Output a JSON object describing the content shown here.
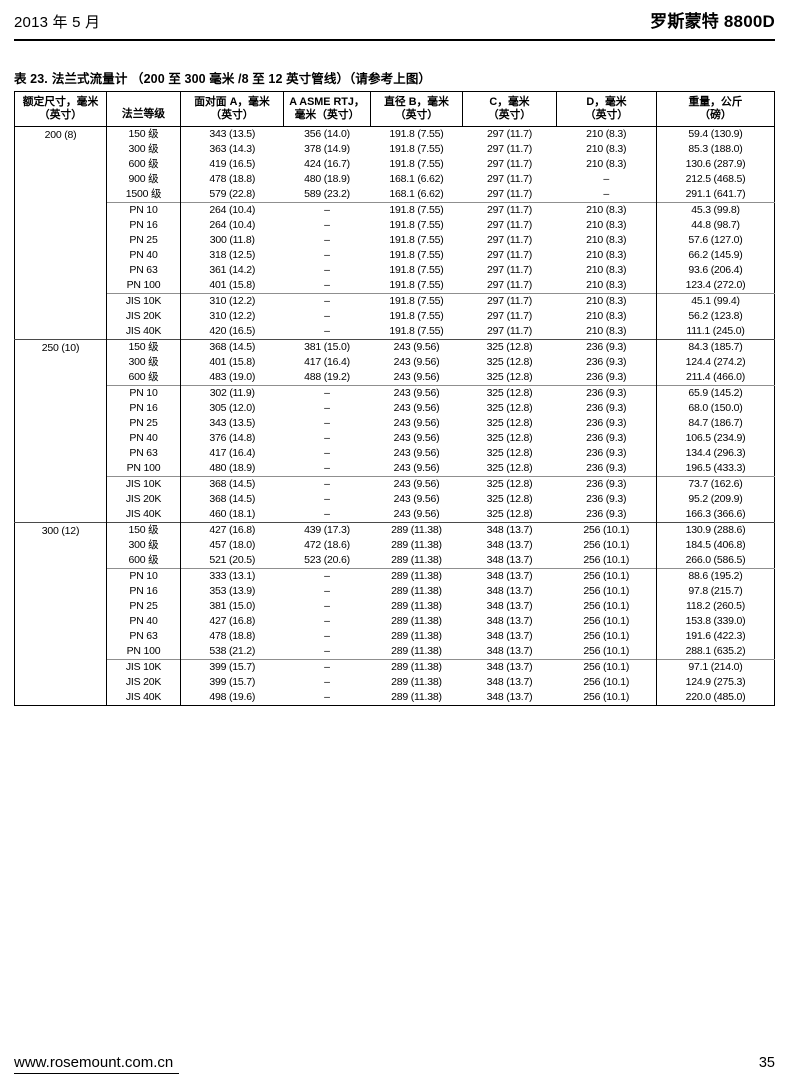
{
  "header": {
    "date": "2013 年 5 月",
    "product": "罗斯蒙特 8800D"
  },
  "table": {
    "title_label": "表 23.",
    "title": "法兰式流量计 （200 至 300 毫米 /8 至 12 英寸管线）（请参考上图）",
    "columns": [
      {
        "id": "size",
        "l1": "额定尺寸，毫米",
        "l2": "（英寸）"
      },
      {
        "id": "flange-class",
        "l1": "法兰等级",
        "l2": ""
      },
      {
        "id": "face-a",
        "l1": "面对面 A，毫米",
        "l2": "（英寸）"
      },
      {
        "id": "asme-rtj",
        "l1": "A ASME RTJ，",
        "l2": "毫米（英寸）"
      },
      {
        "id": "dia-b",
        "l1": "直径 B，毫米",
        "l2": "（英寸）"
      },
      {
        "id": "c-dim",
        "l1": "C，毫米",
        "l2": "（英寸）"
      },
      {
        "id": "d-dim",
        "l1": "D，毫米",
        "l2": "（英寸）"
      },
      {
        "id": "weight",
        "l1": "重量，公斤",
        "l2": "（磅）"
      }
    ],
    "groups": [
      {
        "size": "200 (8)",
        "subgroups": [
          {
            "rows": [
              [
                "150 级",
                "343 (13.5)",
                "356 (14.0)",
                "191.8 (7.55)",
                "297 (11.7)",
                "210 (8.3)",
                "59.4 (130.9)"
              ],
              [
                "300 级",
                "363 (14.3)",
                "378 (14.9)",
                "191.8 (7.55)",
                "297 (11.7)",
                "210 (8.3)",
                "85.3 (188.0)"
              ],
              [
                "600 级",
                "419 (16.5)",
                "424 (16.7)",
                "191.8 (7.55)",
                "297 (11.7)",
                "210 (8.3)",
                "130.6 (287.9)"
              ],
              [
                "900 级",
                "478 (18.8)",
                "480 (18.9)",
                "168.1 (6.62)",
                "297 (11.7)",
                "–",
                "212.5 (468.5)"
              ],
              [
                "1500 级",
                "579 (22.8)",
                "589 (23.2)",
                "168.1 (6.62)",
                "297 (11.7)",
                "–",
                "291.1 (641.7)"
              ]
            ]
          },
          {
            "rows": [
              [
                "PN 10",
                "264 (10.4)",
                "–",
                "191.8 (7.55)",
                "297 (11.7)",
                "210 (8.3)",
                "45.3 (99.8)"
              ],
              [
                "PN 16",
                "264 (10.4)",
                "–",
                "191.8 (7.55)",
                "297 (11.7)",
                "210 (8.3)",
                "44.8 (98.7)"
              ],
              [
                "PN 25",
                "300 (11.8)",
                "–",
                "191.8 (7.55)",
                "297 (11.7)",
                "210 (8.3)",
                "57.6 (127.0)"
              ],
              [
                "PN 40",
                "318 (12.5)",
                "–",
                "191.8 (7.55)",
                "297 (11.7)",
                "210 (8.3)",
                "66.2 (145.9)"
              ],
              [
                "PN 63",
                "361 (14.2)",
                "–",
                "191.8 (7.55)",
                "297 (11.7)",
                "210 (8.3)",
                "93.6 (206.4)"
              ],
              [
                "PN 100",
                "401 (15.8)",
                "–",
                "191.8 (7.55)",
                "297 (11.7)",
                "210 (8.3)",
                "123.4 (272.0)"
              ]
            ]
          },
          {
            "rows": [
              [
                "JIS 10K",
                "310 (12.2)",
                "–",
                "191.8 (7.55)",
                "297 (11.7)",
                "210 (8.3)",
                "45.1 (99.4)"
              ],
              [
                "JIS 20K",
                "310 (12.2)",
                "–",
                "191.8 (7.55)",
                "297 (11.7)",
                "210 (8.3)",
                "56.2 (123.8)"
              ],
              [
                "JIS 40K",
                "420 (16.5)",
                "–",
                "191.8 (7.55)",
                "297 (11.7)",
                "210 (8.3)",
                "111.1 (245.0)"
              ]
            ]
          }
        ]
      },
      {
        "size": "250 (10)",
        "subgroups": [
          {
            "rows": [
              [
                "150 级",
                "368 (14.5)",
                "381 (15.0)",
                "243 (9.56)",
                "325 (12.8)",
                "236 (9.3)",
                "84.3 (185.7)"
              ],
              [
                "300 级",
                "401 (15.8)",
                "417 (16.4)",
                "243 (9.56)",
                "325 (12.8)",
                "236 (9.3)",
                "124.4 (274.2)"
              ],
              [
                "600 级",
                "483 (19.0)",
                "488 (19.2)",
                "243 (9.56)",
                "325 (12.8)",
                "236 (9.3)",
                "211.4 (466.0)"
              ]
            ]
          },
          {
            "rows": [
              [
                "PN 10",
                "302 (11.9)",
                "–",
                "243 (9.56)",
                "325 (12.8)",
                "236 (9.3)",
                "65.9 (145.2)"
              ],
              [
                "PN 16",
                "305 (12.0)",
                "–",
                "243 (9.56)",
                "325 (12.8)",
                "236 (9.3)",
                "68.0 (150.0)"
              ],
              [
                "PN 25",
                "343 (13.5)",
                "–",
                "243 (9.56)",
                "325 (12.8)",
                "236 (9.3)",
                "84.7 (186.7)"
              ],
              [
                "PN 40",
                "376 (14.8)",
                "–",
                "243 (9.56)",
                "325 (12.8)",
                "236 (9.3)",
                "106.5 (234.9)"
              ],
              [
                "PN 63",
                "417 (16.4)",
                "–",
                "243 (9.56)",
                "325 (12.8)",
                "236 (9.3)",
                "134.4 (296.3)"
              ],
              [
                "PN 100",
                "480 (18.9)",
                "–",
                "243 (9.56)",
                "325 (12.8)",
                "236 (9.3)",
                "196.5 (433.3)"
              ]
            ]
          },
          {
            "rows": [
              [
                "JIS 10K",
                "368 (14.5)",
                "–",
                "243 (9.56)",
                "325 (12.8)",
                "236 (9.3)",
                "73.7 (162.6)"
              ],
              [
                "JIS 20K",
                "368 (14.5)",
                "–",
                "243 (9.56)",
                "325 (12.8)",
                "236 (9.3)",
                "95.2 (209.9)"
              ],
              [
                "JIS 40K",
                "460 (18.1)",
                "–",
                "243 (9.56)",
                "325 (12.8)",
                "236 (9.3)",
                "166.3 (366.6)"
              ]
            ]
          }
        ]
      },
      {
        "size": "300 (12)",
        "subgroups": [
          {
            "rows": [
              [
                "150 级",
                "427 (16.8)",
                "439 (17.3)",
                "289 (11.38)",
                "348 (13.7)",
                "256 (10.1)",
                "130.9 (288.6)"
              ],
              [
                "300 级",
                "457 (18.0)",
                "472 (18.6)",
                "289 (11.38)",
                "348 (13.7)",
                "256 (10.1)",
                "184.5 (406.8)"
              ],
              [
                "600 级",
                "521 (20.5)",
                "523 (20.6)",
                "289 (11.38)",
                "348 (13.7)",
                "256 (10.1)",
                "266.0 (586.5)"
              ]
            ]
          },
          {
            "rows": [
              [
                "PN 10",
                "333 (13.1)",
                "–",
                "289 (11.38)",
                "348 (13.7)",
                "256 (10.1)",
                "88.6 (195.2)"
              ],
              [
                "PN 16",
                "353 (13.9)",
                "–",
                "289 (11.38)",
                "348 (13.7)",
                "256 (10.1)",
                "97.8 (215.7)"
              ],
              [
                "PN 25",
                "381 (15.0)",
                "–",
                "289 (11.38)",
                "348 (13.7)",
                "256 (10.1)",
                "118.2 (260.5)"
              ],
              [
                "PN 40",
                "427 (16.8)",
                "–",
                "289 (11.38)",
                "348 (13.7)",
                "256 (10.1)",
                "153.8 (339.0)"
              ],
              [
                "PN 63",
                "478 (18.8)",
                "–",
                "289 (11.38)",
                "348 (13.7)",
                "256 (10.1)",
                "191.6 (422.3)"
              ],
              [
                "PN 100",
                "538 (21.2)",
                "–",
                "289 (11.38)",
                "348 (13.7)",
                "256 (10.1)",
                "288.1 (635.2)"
              ]
            ]
          },
          {
            "rows": [
              [
                "JIS 10K",
                "399 (15.7)",
                "–",
                "289 (11.38)",
                "348 (13.7)",
                "256 (10.1)",
                "97.1 (214.0)"
              ],
              [
                "JIS 20K",
                "399 (15.7)",
                "–",
                "289 (11.38)",
                "348 (13.7)",
                "256 (10.1)",
                "124.9 (275.3)"
              ],
              [
                "JIS 40K",
                "498 (19.6)",
                "–",
                "289 (11.38)",
                "348 (13.7)",
                "256 (10.1)",
                "220.0 (485.0)"
              ]
            ]
          }
        ]
      }
    ]
  },
  "footer": {
    "url": "www.rosemount.com.cn",
    "page": "35"
  }
}
